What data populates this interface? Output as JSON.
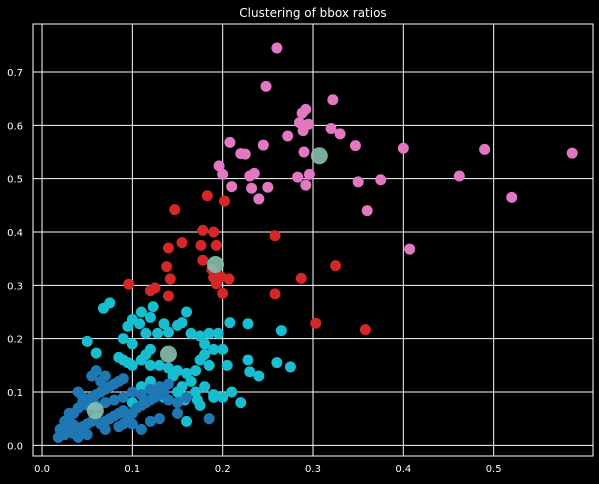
{
  "chart_data": {
    "type": "scatter",
    "title": "Clustering of bbox ratios",
    "xlabel": "",
    "ylabel": "",
    "xlim": [
      -0.01,
      0.61
    ],
    "ylim": [
      -0.02,
      0.79
    ],
    "xticks": [
      "0.0",
      "0.1",
      "0.2",
      "0.3",
      "0.4",
      "0.5"
    ],
    "yticks": [
      "0.0",
      "0.1",
      "0.2",
      "0.3",
      "0.4",
      "0.5",
      "0.6",
      "0.7"
    ],
    "grid": true,
    "background": "#000000",
    "gridcolor": "#ffffff",
    "series": [
      {
        "color": "#e377c2",
        "points": [
          [
            0.26,
            0.745
          ],
          [
            0.322,
            0.648
          ],
          [
            0.248,
            0.673
          ],
          [
            0.292,
            0.63
          ],
          [
            0.288,
            0.623
          ],
          [
            0.272,
            0.58
          ],
          [
            0.285,
            0.605
          ],
          [
            0.289,
            0.59
          ],
          [
            0.295,
            0.602
          ],
          [
            0.32,
            0.594
          ],
          [
            0.33,
            0.584
          ],
          [
            0.347,
            0.562
          ],
          [
            0.29,
            0.55
          ],
          [
            0.245,
            0.563
          ],
          [
            0.208,
            0.568
          ],
          [
            0.225,
            0.546
          ],
          [
            0.22,
            0.547
          ],
          [
            0.196,
            0.524
          ],
          [
            0.2,
            0.508
          ],
          [
            0.235,
            0.51
          ],
          [
            0.23,
            0.505
          ],
          [
            0.21,
            0.485
          ],
          [
            0.232,
            0.482
          ],
          [
            0.25,
            0.484
          ],
          [
            0.24,
            0.462
          ],
          [
            0.283,
            0.503
          ],
          [
            0.292,
            0.488
          ],
          [
            0.296,
            0.508
          ],
          [
            0.35,
            0.494
          ],
          [
            0.375,
            0.498
          ],
          [
            0.4,
            0.557
          ],
          [
            0.49,
            0.555
          ],
          [
            0.587,
            0.548
          ],
          [
            0.462,
            0.505
          ],
          [
            0.52,
            0.465
          ],
          [
            0.36,
            0.44
          ],
          [
            0.407,
            0.368
          ]
        ]
      },
      {
        "color": "#d62728",
        "points": [
          [
            0.147,
            0.442
          ],
          [
            0.202,
            0.458
          ],
          [
            0.183,
            0.468
          ],
          [
            0.178,
            0.403
          ],
          [
            0.19,
            0.4
          ],
          [
            0.176,
            0.375
          ],
          [
            0.193,
            0.375
          ],
          [
            0.155,
            0.38
          ],
          [
            0.14,
            0.37
          ],
          [
            0.138,
            0.335
          ],
          [
            0.178,
            0.347
          ],
          [
            0.188,
            0.33
          ],
          [
            0.19,
            0.315
          ],
          [
            0.198,
            0.316
          ],
          [
            0.207,
            0.312
          ],
          [
            0.193,
            0.303
          ],
          [
            0.2,
            0.285
          ],
          [
            0.142,
            0.312
          ],
          [
            0.125,
            0.295
          ],
          [
            0.12,
            0.29
          ],
          [
            0.14,
            0.28
          ],
          [
            0.096,
            0.302
          ],
          [
            0.258,
            0.393
          ],
          [
            0.287,
            0.313
          ],
          [
            0.325,
            0.337
          ],
          [
            0.258,
            0.284
          ],
          [
            0.303,
            0.229
          ],
          [
            0.358,
            0.217
          ]
        ]
      },
      {
        "color": "#17becf",
        "points": [
          [
            0.075,
            0.267
          ],
          [
            0.068,
            0.257
          ],
          [
            0.1,
            0.236
          ],
          [
            0.095,
            0.223
          ],
          [
            0.108,
            0.228
          ],
          [
            0.11,
            0.25
          ],
          [
            0.12,
            0.24
          ],
          [
            0.123,
            0.26
          ],
          [
            0.135,
            0.228
          ],
          [
            0.14,
            0.212
          ],
          [
            0.128,
            0.21
          ],
          [
            0.115,
            0.21
          ],
          [
            0.15,
            0.225
          ],
          [
            0.155,
            0.23
          ],
          [
            0.16,
            0.25
          ],
          [
            0.165,
            0.21
          ],
          [
            0.175,
            0.205
          ],
          [
            0.18,
            0.19
          ],
          [
            0.185,
            0.21
          ],
          [
            0.195,
            0.21
          ],
          [
            0.208,
            0.23
          ],
          [
            0.228,
            0.228
          ],
          [
            0.265,
            0.215
          ],
          [
            0.05,
            0.195
          ],
          [
            0.06,
            0.173
          ],
          [
            0.085,
            0.165
          ],
          [
            0.09,
            0.16
          ],
          [
            0.095,
            0.155
          ],
          [
            0.1,
            0.15
          ],
          [
            0.11,
            0.16
          ],
          [
            0.12,
            0.15
          ],
          [
            0.13,
            0.15
          ],
          [
            0.14,
            0.145
          ],
          [
            0.15,
            0.14
          ],
          [
            0.16,
            0.135
          ],
          [
            0.17,
            0.14
          ],
          [
            0.175,
            0.16
          ],
          [
            0.18,
            0.17
          ],
          [
            0.19,
            0.18
          ],
          [
            0.2,
            0.18
          ],
          [
            0.185,
            0.15
          ],
          [
            0.165,
            0.12
          ],
          [
            0.155,
            0.11
          ],
          [
            0.145,
            0.13
          ],
          [
            0.12,
            0.12
          ],
          [
            0.11,
            0.11
          ],
          [
            0.13,
            0.105
          ],
          [
            0.15,
            0.1
          ],
          [
            0.17,
            0.1
          ],
          [
            0.18,
            0.11
          ],
          [
            0.19,
            0.095
          ],
          [
            0.2,
            0.09
          ],
          [
            0.172,
            0.085
          ],
          [
            0.158,
            0.085
          ],
          [
            0.135,
            0.09
          ],
          [
            0.1,
            0.08
          ],
          [
            0.228,
            0.16
          ],
          [
            0.24,
            0.13
          ],
          [
            0.26,
            0.155
          ],
          [
            0.275,
            0.147
          ],
          [
            0.22,
            0.08
          ],
          [
            0.175,
            0.075
          ],
          [
            0.16,
            0.045
          ],
          [
            0.23,
            0.138
          ],
          [
            0.19,
            0.09
          ],
          [
            0.21,
            0.1
          ],
          [
            0.205,
            0.15
          ],
          [
            0.12,
            0.18
          ],
          [
            0.115,
            0.17
          ],
          [
            0.09,
            0.2
          ],
          [
            0.1,
            0.19
          ]
        ]
      },
      {
        "color": "#1f77b4",
        "points": [
          [
            0.018,
            0.015
          ],
          [
            0.025,
            0.02
          ],
          [
            0.03,
            0.025
          ],
          [
            0.035,
            0.022
          ],
          [
            0.02,
            0.03
          ],
          [
            0.028,
            0.035
          ],
          [
            0.035,
            0.038
          ],
          [
            0.04,
            0.03
          ],
          [
            0.045,
            0.035
          ],
          [
            0.05,
            0.04
          ],
          [
            0.055,
            0.045
          ],
          [
            0.06,
            0.05
          ],
          [
            0.065,
            0.04
          ],
          [
            0.07,
            0.045
          ],
          [
            0.075,
            0.05
          ],
          [
            0.08,
            0.055
          ],
          [
            0.085,
            0.06
          ],
          [
            0.09,
            0.065
          ],
          [
            0.095,
            0.05
          ],
          [
            0.1,
            0.06
          ],
          [
            0.105,
            0.07
          ],
          [
            0.11,
            0.075
          ],
          [
            0.115,
            0.08
          ],
          [
            0.12,
            0.085
          ],
          [
            0.125,
            0.09
          ],
          [
            0.13,
            0.095
          ],
          [
            0.135,
            0.1
          ],
          [
            0.14,
            0.085
          ],
          [
            0.15,
            0.08
          ],
          [
            0.16,
            0.09
          ],
          [
            0.03,
            0.05
          ],
          [
            0.035,
            0.06
          ],
          [
            0.04,
            0.07
          ],
          [
            0.045,
            0.08
          ],
          [
            0.05,
            0.085
          ],
          [
            0.055,
            0.09
          ],
          [
            0.06,
            0.095
          ],
          [
            0.065,
            0.1
          ],
          [
            0.07,
            0.105
          ],
          [
            0.075,
            0.11
          ],
          [
            0.08,
            0.115
          ],
          [
            0.085,
            0.12
          ],
          [
            0.09,
            0.125
          ],
          [
            0.04,
            0.1
          ],
          [
            0.045,
            0.09
          ],
          [
            0.05,
            0.075
          ],
          [
            0.025,
            0.045
          ],
          [
            0.03,
            0.06
          ],
          [
            0.06,
            0.075
          ],
          [
            0.07,
            0.08
          ],
          [
            0.08,
            0.085
          ],
          [
            0.09,
            0.09
          ],
          [
            0.1,
            0.1
          ],
          [
            0.11,
            0.095
          ],
          [
            0.12,
            0.105
          ],
          [
            0.13,
            0.11
          ],
          [
            0.14,
            0.115
          ],
          [
            0.055,
            0.13
          ],
          [
            0.06,
            0.14
          ],
          [
            0.065,
            0.12
          ],
          [
            0.07,
            0.13
          ],
          [
            0.1,
            0.04
          ],
          [
            0.12,
            0.045
          ],
          [
            0.13,
            0.05
          ],
          [
            0.085,
            0.035
          ],
          [
            0.07,
            0.03
          ],
          [
            0.09,
            0.04
          ],
          [
            0.05,
            0.02
          ],
          [
            0.04,
            0.015
          ],
          [
            0.185,
            0.05
          ],
          [
            0.15,
            0.06
          ],
          [
            0.11,
            0.03
          ]
        ]
      }
    ],
    "centroids": [
      {
        "x": 0.307,
        "y": 0.543,
        "color": "#88c0b0"
      },
      {
        "x": 0.192,
        "y": 0.339,
        "color": "#88c0b0"
      },
      {
        "x": 0.14,
        "y": 0.171,
        "color": "#88c0b0"
      },
      {
        "x": 0.059,
        "y": 0.065,
        "color": "#88c0b0"
      }
    ]
  }
}
